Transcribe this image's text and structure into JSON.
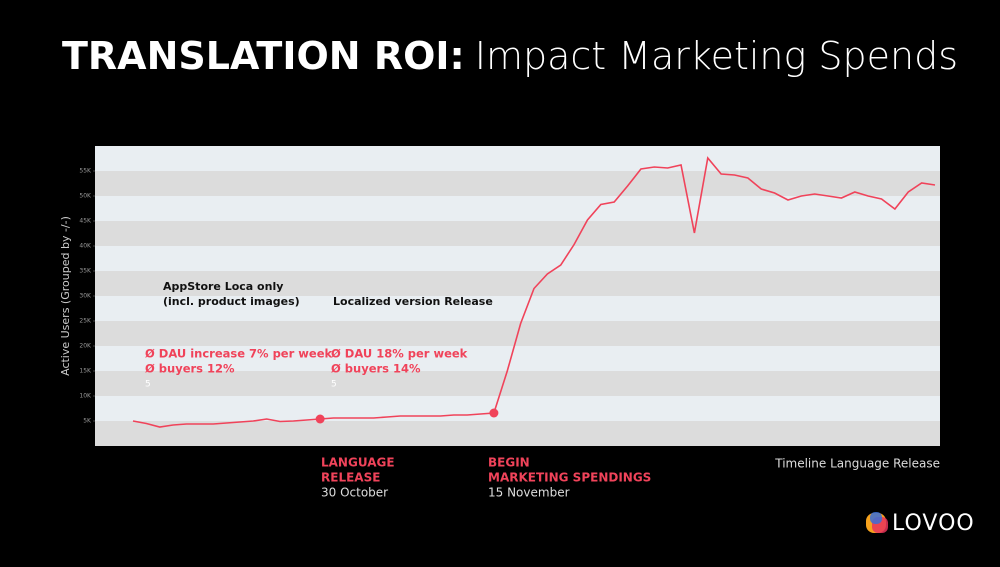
{
  "header": {
    "title_bold": "TRANSLATION ROI:",
    "title_rest": "Impact Marketing Spends"
  },
  "chart_data": {
    "type": "line",
    "y_label": "Active Users (Grouped by -/-)",
    "x_label": "Timeline Language Release",
    "ylim": [
      0,
      60000
    ],
    "yticks": [
      {
        "value": 5000,
        "label": "5K"
      },
      {
        "value": 10000,
        "label": "10K"
      },
      {
        "value": 15000,
        "label": "15K"
      },
      {
        "value": 20000,
        "label": "20K"
      },
      {
        "value": 25000,
        "label": "25K"
      },
      {
        "value": 30000,
        "label": "30K"
      },
      {
        "value": 35000,
        "label": "35K"
      },
      {
        "value": 40000,
        "label": "40K"
      },
      {
        "value": 45000,
        "label": "45K"
      },
      {
        "value": 50000,
        "label": "50K"
      },
      {
        "value": 55000,
        "label": "55K"
      }
    ],
    "bands": true,
    "categories": [
      null,
      null,
      null,
      null,
      null,
      null,
      null,
      null,
      null,
      null,
      null,
      null,
      null,
      null,
      null,
      null,
      null,
      null,
      null,
      null,
      null,
      null,
      null,
      null,
      null,
      null,
      null,
      null,
      null,
      null,
      null,
      null,
      null,
      null,
      null,
      null,
      null,
      null,
      null,
      null,
      null,
      null,
      null,
      null,
      null,
      null,
      null,
      null,
      null,
      null,
      null,
      null,
      null,
      null,
      null,
      null,
      null,
      null,
      null,
      null,
      null
    ],
    "series": [
      {
        "color": "#f0435a",
        "values": [
          5000,
          4500,
          3800,
          4200,
          4400,
          4400,
          4400,
          4600,
          4800,
          5000,
          5400,
          4900,
          5000,
          5200,
          5400,
          5600,
          5600,
          5600,
          5600,
          5800,
          6000,
          6000,
          6000,
          6000,
          6200,
          6200,
          6400,
          6600,
          15000,
          24500,
          31500,
          34400,
          36200,
          40300,
          45200,
          48300,
          48800,
          52000,
          55400,
          55800,
          55600,
          56200,
          42600,
          57600,
          54400,
          54200,
          53600,
          51400,
          50600,
          49200,
          50000,
          50400,
          50000,
          49600,
          50800,
          50000,
          49400,
          47400,
          50800,
          52600,
          52200
        ]
      }
    ]
  },
  "annotations": [
    {
      "lines": [
        "AppStore Loca only",
        "(incl. product images)"
      ],
      "stats": [
        "Ø DAU increase 7% per week",
        "Ø buyers 12%"
      ],
      "note": "5"
    },
    {
      "lines": [
        "Localized version Release"
      ],
      "stats": [
        "Ø DAU 18% per week",
        "Ø buyers 14%"
      ],
      "note": "5"
    }
  ],
  "events": [
    {
      "label": [
        "LANGUAGE",
        "RELEASE"
      ],
      "date": "30 October"
    },
    {
      "label": [
        "BEGIN",
        "MARKETING SPENDINGS"
      ],
      "date": "15 November"
    }
  ],
  "logo": "LOVOO"
}
